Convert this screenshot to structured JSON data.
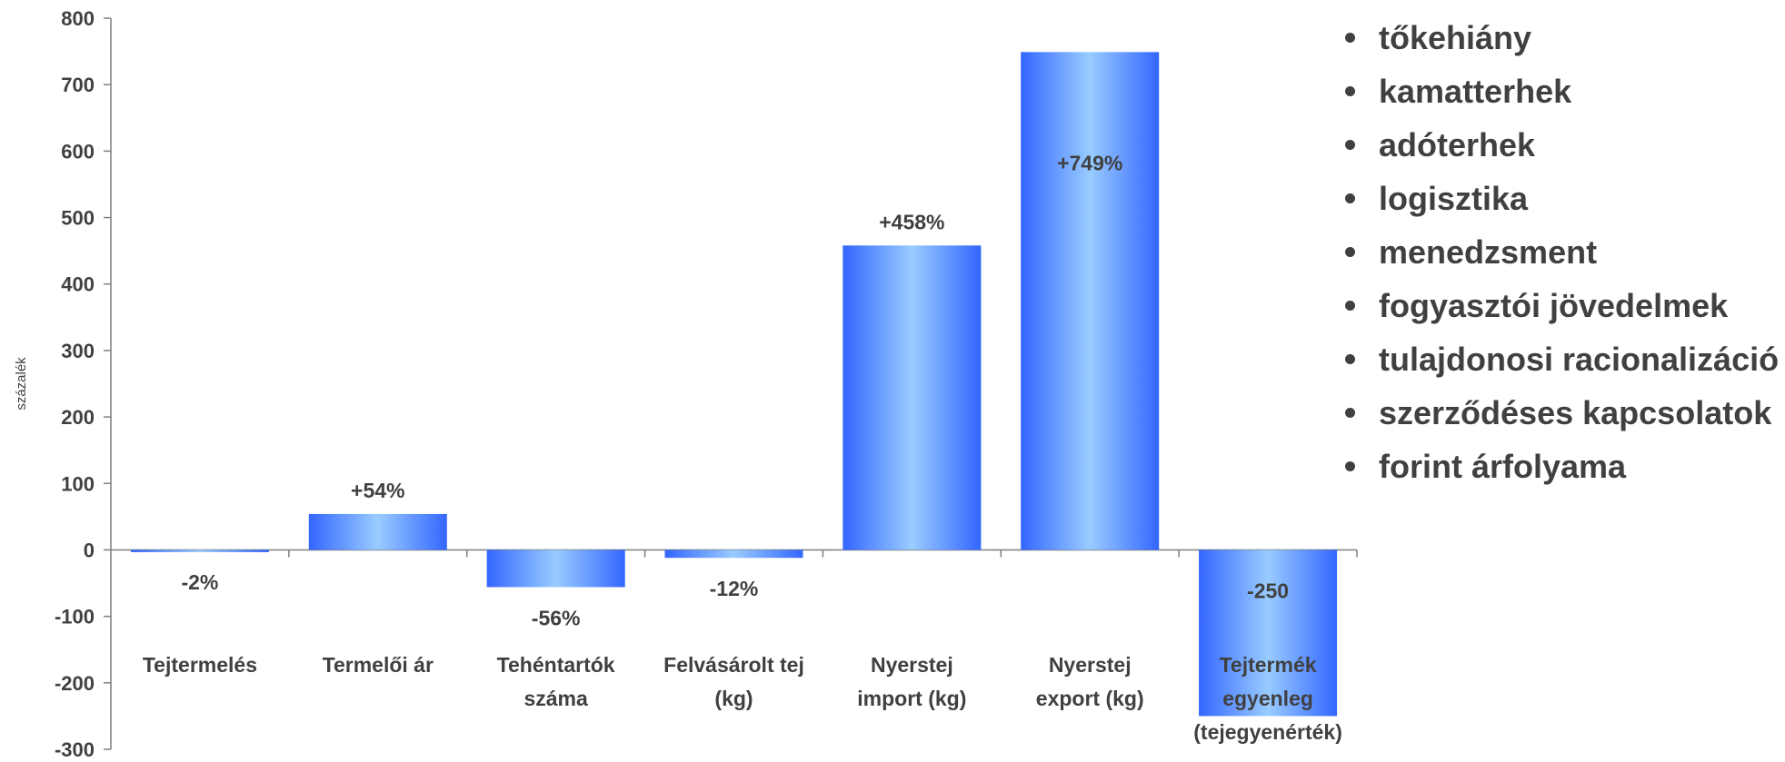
{
  "chart_data": {
    "type": "bar",
    "ylabel": "százalék",
    "ylim": [
      -300,
      800
    ],
    "yticks": [
      800,
      700,
      600,
      500,
      400,
      300,
      200,
      100,
      0,
      -100,
      -200,
      -300
    ],
    "categories": [
      [
        "Tejtermelés"
      ],
      [
        "Termelői ár"
      ],
      [
        "Tehéntartók",
        "száma"
      ],
      [
        "Felvásárolt tej",
        "(kg)"
      ],
      [
        "Nyerstej",
        "import (kg)"
      ],
      [
        "Nyerstej",
        "export (kg)"
      ],
      [
        "Tejtermék",
        "egyenleg",
        "(tejegyenérték)"
      ]
    ],
    "values": [
      -2,
      54,
      -56,
      -12,
      458,
      749,
      -250
    ],
    "data_labels": [
      "-2%",
      "+54%",
      "-56%",
      "-12%",
      "+458%",
      "+749%",
      "-250"
    ],
    "bar_colors": {
      "edge": "#3366ff",
      "center": "#99ccff"
    },
    "grid": false,
    "legend": "none"
  },
  "bullets": [
    "tőkehiány",
    "kamatterhek",
    "adóterhek",
    "logisztika",
    "menedzsment",
    "fogyasztói jövedelmek",
    "tulajdonosi racionalizáció",
    "szerződéses kapcsolatok",
    "forint árfolyama"
  ]
}
